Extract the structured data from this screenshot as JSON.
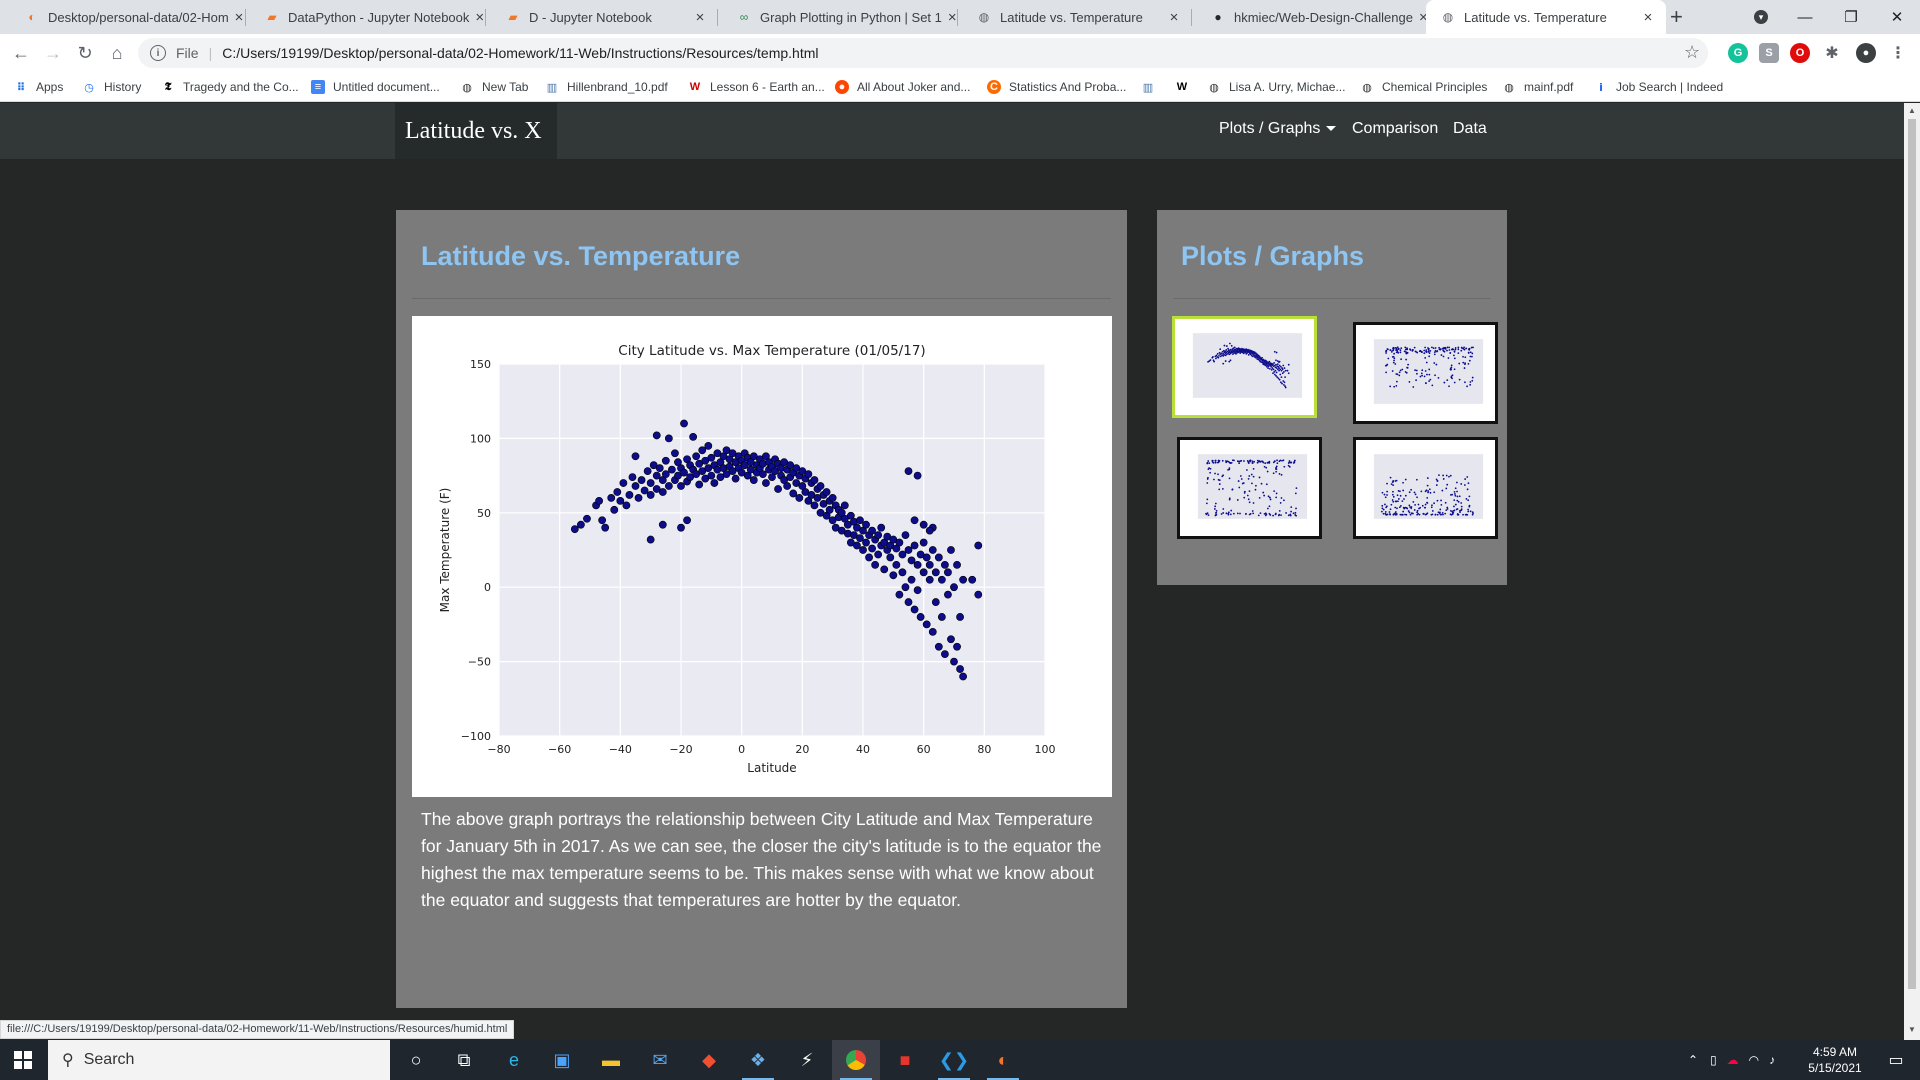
{
  "browser": {
    "tabs": [
      {
        "title": "Desktop/personal-data/02-Hom",
        "icon": "jupyter-icon",
        "color": "#f37626"
      },
      {
        "title": "DataPython - Jupyter Notebook",
        "icon": "notebook-icon",
        "color": "#f37626"
      },
      {
        "title": "D - Jupyter Notebook",
        "icon": "notebook-icon",
        "color": "#f37626"
      },
      {
        "title": "Graph Plotting in Python | Set 1",
        "icon": "gfg-icon",
        "color": "#2f8d46"
      },
      {
        "title": "Latitude vs. Temperature",
        "icon": "globe-icon",
        "color": "#5f6368"
      },
      {
        "title": "hkmiec/Web-Design-Challenge",
        "icon": "github-icon",
        "color": "#24292e"
      },
      {
        "title": "Latitude vs. Temperature",
        "icon": "globe-icon",
        "color": "#5f6368"
      }
    ],
    "new_tab_glyph": "+",
    "address": {
      "prefix": "File",
      "url": "C:/Users/19199/Desktop/personal-data/02-Homework/11-Web/Instructions/Resources/temp.html"
    },
    "bookmarks": [
      {
        "label": "Apps",
        "icon": "apps-icon"
      },
      {
        "label": "History",
        "icon": "history-icon"
      },
      {
        "label": "Tragedy and the Co...",
        "icon": "nyt-icon"
      },
      {
        "label": "Untitled document...",
        "icon": "docs-icon"
      },
      {
        "label": "New Tab",
        "icon": "globe-icon"
      },
      {
        "label": "Hillenbrand_10.pdf",
        "icon": "pdf-icon"
      },
      {
        "label": "Lesson 6 - Earth an...",
        "icon": "wa-icon"
      },
      {
        "label": "All About Joker and...",
        "icon": "reddit-icon"
      },
      {
        "label": "Statistics And Proba...",
        "icon": "course-icon"
      },
      {
        "label": "",
        "icon": "pdf-icon"
      },
      {
        "label": "",
        "icon": "wikipedia-icon"
      },
      {
        "label": "Lisa A. Urry, Michae...",
        "icon": "globe-icon"
      },
      {
        "label": "Chemical Principles",
        "icon": "globe-icon"
      },
      {
        "label": "mainf.pdf",
        "icon": "globe-icon"
      },
      {
        "label": "Job Search | Indeed",
        "icon": "indeed-icon"
      }
    ],
    "status_url": "file:///C:/Users/19199/Desktop/personal-data/02-Homework/11-Web/Instructions/Resources/humid.html"
  },
  "site": {
    "brand": "Latitude vs. X",
    "nav": {
      "plots": "Plots / Graphs",
      "comparison": "Comparison",
      "data": "Data"
    },
    "main_title": "Latitude vs. Temperature",
    "description": "The above graph portrays the relationship between City Latitude and Max Temperature for January 5th in 2017. As we can see, the closer the city's latitude is to the equator the highest the max temperature seems to be. This makes sense with what we know about the equator and suggests that temperatures are hotter by the equator.",
    "side_title": "Plots / Graphs",
    "thumbnails": [
      {
        "name": "thumb-temperature",
        "selected": true
      },
      {
        "name": "thumb-humidity",
        "selected": false
      },
      {
        "name": "thumb-cloudiness",
        "selected": false
      },
      {
        "name": "thumb-wind-speed",
        "selected": false
      }
    ],
    "colors": {
      "accent": "#8ec5f2",
      "panel": "#7b7b7b",
      "selected_border": "#b9e03a",
      "marker": "#0d0d8c"
    }
  },
  "chart_data": {
    "type": "scatter",
    "title": "City Latitude vs. Max Temperature (01/05/17)",
    "xlabel": "Latitude",
    "ylabel": "Max Temperature (F)",
    "xlim": [
      -80,
      100
    ],
    "ylim": [
      -100,
      150
    ],
    "xticks": [
      -80,
      -60,
      -40,
      -20,
      0,
      20,
      40,
      60,
      80,
      100
    ],
    "yticks": [
      -100,
      -50,
      0,
      50,
      100,
      150
    ],
    "grid": true,
    "trend": "points arch from about 40F near -55 latitude up to 70-90F between -30 and 20 latitude, then fall to about -60F near 70 latitude",
    "points": [
      [
        -55,
        39
      ],
      [
        -53,
        42
      ],
      [
        -51,
        46
      ],
      [
        -48,
        55
      ],
      [
        -47,
        58
      ],
      [
        -46,
        45
      ],
      [
        -45,
        40
      ],
      [
        -43,
        60
      ],
      [
        -42,
        52
      ],
      [
        -41,
        64
      ],
      [
        -40,
        58
      ],
      [
        -39,
        70
      ],
      [
        -38,
        55
      ],
      [
        -37,
        62
      ],
      [
        -36,
        74
      ],
      [
        -35,
        88
      ],
      [
        -35,
        68
      ],
      [
        -34,
        60
      ],
      [
        -33,
        72
      ],
      [
        -32,
        65
      ],
      [
        -31,
        78
      ],
      [
        -30,
        70
      ],
      [
        -30,
        62
      ],
      [
        -29,
        82
      ],
      [
        -28,
        75
      ],
      [
        -28,
        66
      ],
      [
        -27,
        80
      ],
      [
        -26,
        72
      ],
      [
        -26,
        64
      ],
      [
        -25,
        85
      ],
      [
        -25,
        76
      ],
      [
        -24,
        68
      ],
      [
        -24,
        100
      ],
      [
        -23,
        79
      ],
      [
        -22,
        72
      ],
      [
        -22,
        90
      ],
      [
        -21,
        84
      ],
      [
        -21,
        75
      ],
      [
        -20,
        80
      ],
      [
        -20,
        68
      ],
      [
        -19,
        77
      ],
      [
        -19,
        110
      ],
      [
        -18,
        86
      ],
      [
        -18,
        71
      ],
      [
        -17,
        82
      ],
      [
        -17,
        74
      ],
      [
        -16,
        79
      ],
      [
        -16,
        101
      ],
      [
        -15,
        88
      ],
      [
        -15,
        76
      ],
      [
        -14,
        83
      ],
      [
        -14,
        69
      ],
      [
        -13,
        92
      ],
      [
        -13,
        78
      ],
      [
        -12,
        85
      ],
      [
        -12,
        73
      ],
      [
        -11,
        80
      ],
      [
        -11,
        95
      ],
      [
        -10,
        87
      ],
      [
        -10,
        75
      ],
      [
        -9,
        82
      ],
      [
        -9,
        70
      ],
      [
        -8,
        90
      ],
      [
        -8,
        79
      ],
      [
        -7,
        84
      ],
      [
        -7,
        74
      ],
      [
        -6,
        88
      ],
      [
        -6,
        80
      ],
      [
        -5,
        92
      ],
      [
        -5,
        76
      ],
      [
        -4,
        86
      ],
      [
        -4,
        81
      ],
      [
        -3,
        90
      ],
      [
        -3,
        78
      ],
      [
        -2,
        84
      ],
      [
        -2,
        73
      ],
      [
        -1,
        88
      ],
      [
        -1,
        80
      ],
      [
        0,
        85
      ],
      [
        0,
        77
      ],
      [
        1,
        90
      ],
      [
        1,
        82
      ],
      [
        2,
        87
      ],
      [
        2,
        75
      ],
      [
        3,
        84
      ],
      [
        3,
        79
      ],
      [
        4,
        88
      ],
      [
        4,
        72
      ],
      [
        5,
        82
      ],
      [
        5,
        77
      ],
      [
        6,
        86
      ],
      [
        6,
        80
      ],
      [
        7,
        83
      ],
      [
        7,
        76
      ],
      [
        8,
        88
      ],
      [
        8,
        70
      ],
      [
        9,
        84
      ],
      [
        9,
        79
      ],
      [
        10,
        81
      ],
      [
        10,
        74
      ],
      [
        11,
        86
      ],
      [
        11,
        78
      ],
      [
        12,
        83
      ],
      [
        12,
        66
      ],
      [
        13,
        80
      ],
      [
        13,
        75
      ],
      [
        14,
        84
      ],
      [
        14,
        72
      ],
      [
        15,
        79
      ],
      [
        15,
        68
      ],
      [
        16,
        82
      ],
      [
        16,
        74
      ],
      [
        17,
        77
      ],
      [
        17,
        63
      ],
      [
        18,
        80
      ],
      [
        18,
        70
      ],
      [
        19,
        75
      ],
      [
        19,
        60
      ],
      [
        20,
        78
      ],
      [
        20,
        68
      ],
      [
        21,
        73
      ],
      [
        21,
        64
      ],
      [
        22,
        76
      ],
      [
        22,
        58
      ],
      [
        23,
        70
      ],
      [
        23,
        62
      ],
      [
        24,
        72
      ],
      [
        24,
        55
      ],
      [
        25,
        66
      ],
      [
        25,
        60
      ],
      [
        26,
        68
      ],
      [
        26,
        50
      ],
      [
        27,
        62
      ],
      [
        27,
        56
      ],
      [
        28,
        64
      ],
      [
        28,
        48
      ],
      [
        29,
        58
      ],
      [
        29,
        52
      ],
      [
        30,
        60
      ],
      [
        30,
        45
      ],
      [
        31,
        55
      ],
      [
        31,
        40
      ],
      [
        32,
        52
      ],
      [
        32,
        47
      ],
      [
        33,
        50
      ],
      [
        33,
        38
      ],
      [
        34,
        46
      ],
      [
        34,
        55
      ],
      [
        35,
        42
      ],
      [
        35,
        36
      ],
      [
        36,
        48
      ],
      [
        36,
        30
      ],
      [
        37,
        44
      ],
      [
        37,
        35
      ],
      [
        38,
        40
      ],
      [
        38,
        28
      ],
      [
        39,
        45
      ],
      [
        39,
        33
      ],
      [
        40,
        38
      ],
      [
        40,
        25
      ],
      [
        41,
        42
      ],
      [
        41,
        30
      ],
      [
        42,
        35
      ],
      [
        42,
        20
      ],
      [
        43,
        38
      ],
      [
        43,
        26
      ],
      [
        44,
        32
      ],
      [
        44,
        15
      ],
      [
        45,
        35
      ],
      [
        45,
        22
      ],
      [
        46,
        28
      ],
      [
        46,
        40
      ],
      [
        47,
        30
      ],
      [
        47,
        12
      ],
      [
        48,
        25
      ],
      [
        48,
        34
      ],
      [
        49,
        20
      ],
      [
        49,
        28
      ],
      [
        50,
        32
      ],
      [
        50,
        8
      ],
      [
        51,
        26
      ],
      [
        51,
        15
      ],
      [
        52,
        30
      ],
      [
        52,
        -5
      ],
      [
        53,
        22
      ],
      [
        53,
        10
      ],
      [
        54,
        35
      ],
      [
        54,
        0
      ],
      [
        55,
        25
      ],
      [
        55,
        -10
      ],
      [
        56,
        18
      ],
      [
        56,
        5
      ],
      [
        57,
        28
      ],
      [
        57,
        -15
      ],
      [
        58,
        15
      ],
      [
        58,
        -2
      ],
      [
        59,
        22
      ],
      [
        59,
        -20
      ],
      [
        60,
        10
      ],
      [
        60,
        30
      ],
      [
        61,
        20
      ],
      [
        61,
        -25
      ],
      [
        62,
        5
      ],
      [
        62,
        15
      ],
      [
        63,
        25
      ],
      [
        63,
        -30
      ],
      [
        64,
        -10
      ],
      [
        64,
        10
      ],
      [
        65,
        20
      ],
      [
        65,
        -40
      ],
      [
        66,
        5
      ],
      [
        66,
        -20
      ],
      [
        67,
        15
      ],
      [
        67,
        -45
      ],
      [
        68,
        -5
      ],
      [
        68,
        10
      ],
      [
        69,
        -35
      ],
      [
        69,
        25
      ],
      [
        70,
        -50
      ],
      [
        70,
        0
      ],
      [
        71,
        -40
      ],
      [
        71,
        15
      ],
      [
        72,
        -55
      ],
      [
        72,
        -20
      ],
      [
        73,
        -60
      ],
      [
        73,
        5
      ],
      [
        55,
        78
      ],
      [
        58,
        75
      ],
      [
        57,
        45
      ],
      [
        78,
        28
      ],
      [
        76,
        5
      ],
      [
        78,
        -5
      ],
      [
        60,
        42
      ],
      [
        63,
        40
      ],
      [
        62,
        38
      ],
      [
        -28,
        102
      ],
      [
        -18,
        45
      ],
      [
        -26,
        42
      ],
      [
        -30,
        32
      ],
      [
        -20,
        40
      ]
    ]
  }
}
